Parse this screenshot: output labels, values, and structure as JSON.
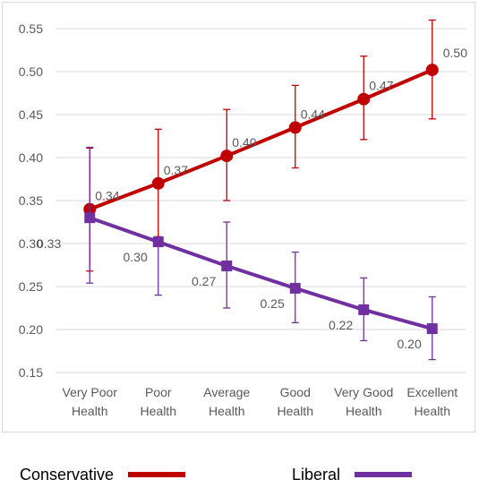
{
  "chart_data": {
    "type": "line",
    "categories": [
      [
        "Very Poor",
        "Health"
      ],
      [
        "Poor",
        "Health"
      ],
      [
        "Average",
        "Health"
      ],
      [
        "Good",
        "Health"
      ],
      [
        "Very Good",
        "Health"
      ],
      [
        "Excellent",
        "Health"
      ]
    ],
    "y_ticks": [
      "0.15",
      "0.20",
      "0.25",
      "0.30",
      "0.35",
      "0.40",
      "0.45",
      "0.50",
      "0.55"
    ],
    "ylim": [
      0.15,
      0.55
    ],
    "grid": "horizontal",
    "legend_position": "bottom",
    "series": [
      {
        "name": "Conservative",
        "color": "#c00000",
        "marker": "circle",
        "values": [
          0.34,
          0.37,
          0.402,
          0.435,
          0.468,
          0.502
        ],
        "labels": [
          "0.34",
          "0.37",
          "0.40",
          "0.44",
          "0.47",
          "0.50"
        ],
        "error_low": [
          0.268,
          0.308,
          0.35,
          0.388,
          0.421,
          0.445
        ],
        "error_high": [
          0.411,
          0.433,
          0.456,
          0.484,
          0.518,
          0.56
        ]
      },
      {
        "name": "Liberal",
        "color": "#7030a0",
        "marker": "square",
        "values": [
          0.33,
          0.302,
          0.274,
          0.248,
          0.223,
          0.201
        ],
        "labels": [
          "0.33",
          "0.30",
          "0.27",
          "0.25",
          "0.22",
          "0.20"
        ],
        "error_low": [
          0.254,
          0.24,
          0.225,
          0.208,
          0.187,
          0.165
        ],
        "error_high": [
          0.412,
          0.305,
          0.325,
          0.29,
          0.26,
          0.238
        ]
      }
    ]
  }
}
